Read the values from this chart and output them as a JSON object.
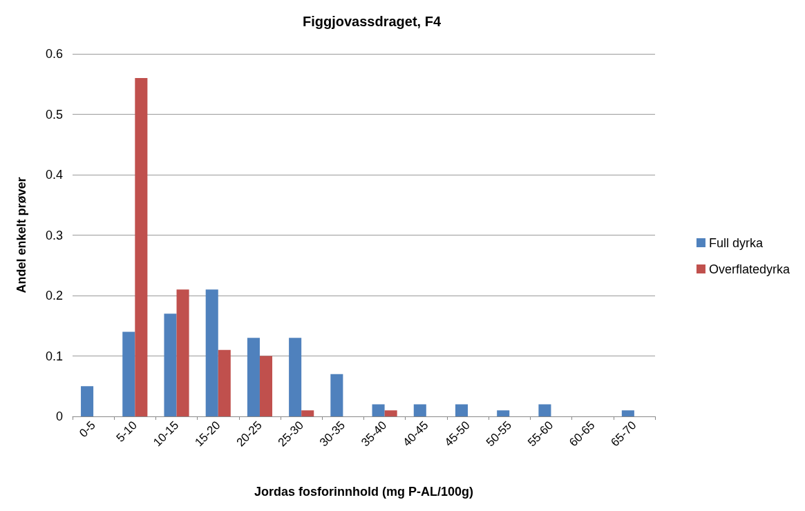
{
  "chart_data": {
    "type": "bar",
    "title": "Figgjovassdraget, F4",
    "xlabel": "Jordas fosforinnhold (mg P-AL/100g)",
    "ylabel": "Andel enkelt prøver",
    "categories": [
      "0-5",
      "5-10",
      "10-15",
      "15-20",
      "20-25",
      "25-30",
      "30-35",
      "35-40",
      "40-45",
      "45-50",
      "50-55",
      "55-60",
      "60-65",
      "65-70"
    ],
    "series": [
      {
        "name": "Full dyrka",
        "color": "#4f81bd",
        "values": [
          0.05,
          0.14,
          0.17,
          0.21,
          0.13,
          0.13,
          0.07,
          0.02,
          0.02,
          0.02,
          0.01,
          0.02,
          0,
          0.01
        ]
      },
      {
        "name": "Overflatedyrka",
        "color": "#c0504d",
        "values": [
          0,
          0.56,
          0.21,
          0.11,
          0.1,
          0.01,
          0,
          0.01,
          0,
          0,
          0,
          0,
          0,
          0
        ]
      }
    ],
    "ylim": [
      0,
      0.6
    ],
    "yticks": [
      0,
      0.1,
      0.2,
      0.3,
      0.4,
      0.5,
      0.6
    ],
    "grid": "y",
    "legend": "right"
  }
}
